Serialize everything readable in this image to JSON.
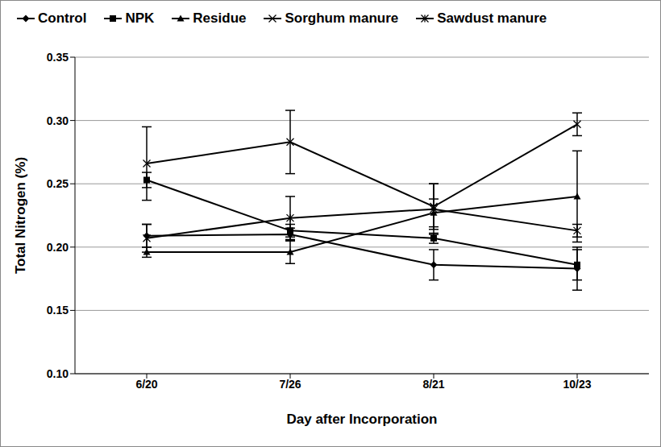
{
  "chart_data": {
    "type": "line",
    "x_label": "Day after Incorporation",
    "y_label": "Total Nitrogen (%)",
    "categories": [
      "6/20",
      "7/26",
      "8/21",
      "10/23"
    ],
    "ylim": [
      0.1,
      0.35
    ],
    "yticks": [
      {
        "value": 0.1,
        "label": "0.10"
      },
      0.15,
      {
        "value": 0.2,
        "label": "0.20"
      },
      0.25,
      {
        "value": 0.3,
        "label": "0.30"
      },
      0.35
    ],
    "grid": true,
    "legend": "top",
    "series": [
      {
        "name": "Control",
        "color": "#000000",
        "marker": "diamond",
        "values": [
          0.209,
          0.21,
          0.186,
          0.183
        ],
        "errors": [
          0.009,
          0.005,
          0.012,
          0.017
        ]
      },
      {
        "name": "NPK",
        "color": "#000000",
        "marker": "square",
        "values": [
          0.253,
          0.213,
          0.207,
          0.186
        ],
        "errors": [
          0.006,
          0.005,
          0.004,
          0.012
        ]
      },
      {
        "name": "Residue",
        "color": "#000000",
        "marker": "triangle",
        "values": [
          0.196,
          0.196,
          0.227,
          0.24
        ],
        "errors": [
          0.004,
          0.009,
          0.011,
          0.036
        ]
      },
      {
        "name": "Sorghum manure",
        "color": "#000000",
        "marker": "x",
        "values": [
          0.266,
          0.283,
          0.232,
          0.297
        ],
        "errors": [
          0.029,
          0.025,
          0.018,
          0.009
        ]
      },
      {
        "name": "Sawdust manure",
        "color": "#000000",
        "marker": "star",
        "values": [
          0.207,
          0.223,
          0.23,
          0.213
        ],
        "errors": [
          0.011,
          0.017,
          0.02,
          0.005
        ]
      }
    ]
  }
}
